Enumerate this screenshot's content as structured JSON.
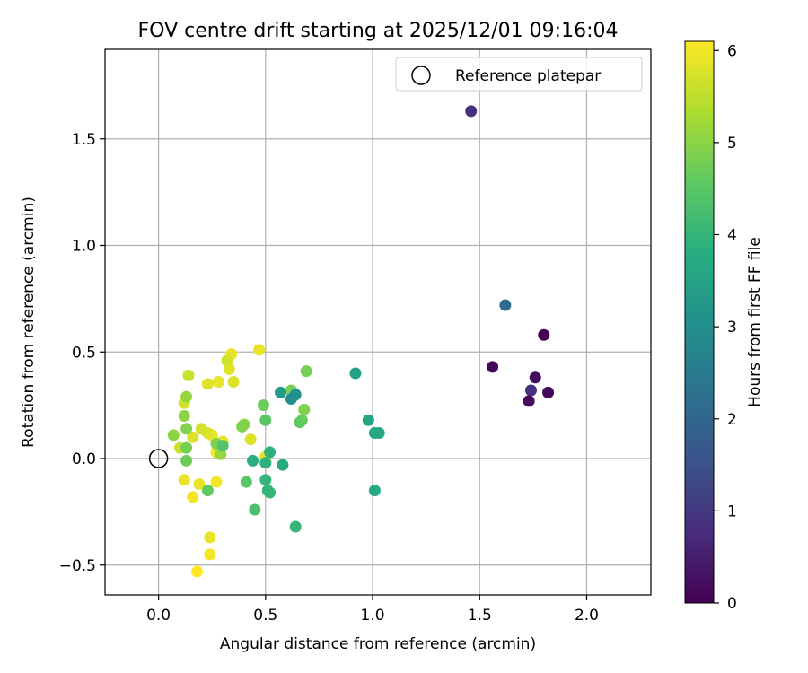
{
  "chart_data": {
    "type": "scatter",
    "title": "FOV centre drift starting at 2025/12/01 09:16:04",
    "xlabel": "Angular distance from reference (arcmin)",
    "ylabel": "Rotation from reference (arcmin)",
    "xlim": [
      -0.25,
      2.3
    ],
    "ylim": [
      -0.64,
      1.92
    ],
    "xticks": [
      0.0,
      0.5,
      1.0,
      1.5,
      2.0
    ],
    "xtick_labels": [
      "0.0",
      "0.5",
      "1.0",
      "1.5",
      "2.0"
    ],
    "yticks": [
      -0.5,
      0.0,
      0.5,
      1.0,
      1.5
    ],
    "ytick_labels": [
      "−0.5",
      "0.0",
      "0.5",
      "1.0",
      "1.5"
    ],
    "grid": true,
    "legend": {
      "location": "top-right",
      "entries": [
        "Reference platepar"
      ]
    },
    "reference_point": {
      "x": 0.0,
      "y": 0.0,
      "label": "Reference platepar"
    },
    "colorbar": {
      "label": "Hours from first FF file",
      "colormap": "viridis",
      "range": [
        0,
        6.1
      ],
      "ticks": [
        0,
        1,
        2,
        3,
        4,
        5,
        6
      ],
      "tick_labels": [
        "0",
        "1",
        "2",
        "3",
        "4",
        "5",
        "6"
      ]
    },
    "points": [
      {
        "x": 1.8,
        "y": 0.58,
        "t": 0.0
      },
      {
        "x": 1.56,
        "y": 0.43,
        "t": 0.1
      },
      {
        "x": 1.76,
        "y": 0.38,
        "t": 0.2
      },
      {
        "x": 1.82,
        "y": 0.31,
        "t": 0.1
      },
      {
        "x": 1.73,
        "y": 0.27,
        "t": 0.15
      },
      {
        "x": 1.74,
        "y": 0.32,
        "t": 0.8
      },
      {
        "x": 1.46,
        "y": 1.63,
        "t": 0.8
      },
      {
        "x": 1.62,
        "y": 0.72,
        "t": 2.1
      },
      {
        "x": 0.62,
        "y": 0.28,
        "t": 3.0
      },
      {
        "x": 0.64,
        "y": 0.3,
        "t": 3.1
      },
      {
        "x": 0.57,
        "y": 0.31,
        "t": 3.3
      },
      {
        "x": 0.92,
        "y": 0.4,
        "t": 3.5
      },
      {
        "x": 0.98,
        "y": 0.18,
        "t": 3.6
      },
      {
        "x": 1.01,
        "y": 0.12,
        "t": 3.6
      },
      {
        "x": 1.03,
        "y": 0.12,
        "t": 3.6
      },
      {
        "x": 1.01,
        "y": -0.15,
        "t": 3.7
      },
      {
        "x": 0.58,
        "y": -0.03,
        "t": 3.7
      },
      {
        "x": 0.44,
        "y": -0.01,
        "t": 3.8
      },
      {
        "x": 0.5,
        "y": -0.02,
        "t": 3.9
      },
      {
        "x": 0.52,
        "y": 0.03,
        "t": 3.9
      },
      {
        "x": 0.5,
        "y": -0.1,
        "t": 4.0
      },
      {
        "x": 0.51,
        "y": -0.15,
        "t": 4.0
      },
      {
        "x": 0.52,
        "y": -0.16,
        "t": 4.1
      },
      {
        "x": 0.64,
        "y": -0.32,
        "t": 4.0
      },
      {
        "x": 0.45,
        "y": -0.24,
        "t": 4.3
      },
      {
        "x": 0.41,
        "y": -0.11,
        "t": 4.5
      },
      {
        "x": 0.3,
        "y": 0.06,
        "t": 4.4
      },
      {
        "x": 0.5,
        "y": 0.18,
        "t": 4.5
      },
      {
        "x": 0.49,
        "y": 0.25,
        "t": 4.7
      },
      {
        "x": 0.62,
        "y": 0.32,
        "t": 4.8
      },
      {
        "x": 0.66,
        "y": 0.17,
        "t": 4.6
      },
      {
        "x": 0.67,
        "y": 0.18,
        "t": 4.7
      },
      {
        "x": 0.68,
        "y": 0.23,
        "t": 4.9
      },
      {
        "x": 0.69,
        "y": 0.41,
        "t": 4.8
      },
      {
        "x": 0.39,
        "y": 0.15,
        "t": 4.9
      },
      {
        "x": 0.4,
        "y": 0.16,
        "t": 5.0
      },
      {
        "x": 0.23,
        "y": -0.15,
        "t": 4.6
      },
      {
        "x": 0.13,
        "y": -0.01,
        "t": 4.7
      },
      {
        "x": 0.13,
        "y": 0.05,
        "t": 4.8
      },
      {
        "x": 0.13,
        "y": 0.14,
        "t": 4.9
      },
      {
        "x": 0.12,
        "y": 0.2,
        "t": 5.0
      },
      {
        "x": 0.13,
        "y": 0.29,
        "t": 5.1
      },
      {
        "x": 0.07,
        "y": 0.11,
        "t": 5.0
      },
      {
        "x": 0.27,
        "y": 0.07,
        "t": 4.9
      },
      {
        "x": 0.29,
        "y": 0.02,
        "t": 5.1
      },
      {
        "x": 0.1,
        "y": 0.05,
        "t": 5.6
      },
      {
        "x": 0.12,
        "y": 0.26,
        "t": 5.7
      },
      {
        "x": 0.14,
        "y": 0.39,
        "t": 5.6
      },
      {
        "x": 0.16,
        "y": 0.1,
        "t": 5.8
      },
      {
        "x": 0.2,
        "y": 0.14,
        "t": 5.7
      },
      {
        "x": 0.23,
        "y": 0.12,
        "t": 5.8
      },
      {
        "x": 0.25,
        "y": 0.11,
        "t": 5.9
      },
      {
        "x": 0.23,
        "y": 0.35,
        "t": 5.8
      },
      {
        "x": 0.28,
        "y": 0.36,
        "t": 5.9
      },
      {
        "x": 0.32,
        "y": 0.46,
        "t": 5.7
      },
      {
        "x": 0.33,
        "y": 0.42,
        "t": 5.8
      },
      {
        "x": 0.34,
        "y": 0.49,
        "t": 5.9
      },
      {
        "x": 0.35,
        "y": 0.36,
        "t": 5.8
      },
      {
        "x": 0.47,
        "y": 0.51,
        "t": 5.9
      },
      {
        "x": 0.43,
        "y": 0.09,
        "t": 5.8
      },
      {
        "x": 0.5,
        "y": 0.01,
        "t": 5.9
      },
      {
        "x": 0.3,
        "y": 0.08,
        "t": 5.9
      },
      {
        "x": 0.27,
        "y": 0.03,
        "t": 6.0
      },
      {
        "x": 0.12,
        "y": -0.1,
        "t": 5.9
      },
      {
        "x": 0.19,
        "y": -0.12,
        "t": 5.9
      },
      {
        "x": 0.27,
        "y": -0.11,
        "t": 6.0
      },
      {
        "x": 0.16,
        "y": -0.18,
        "t": 6.0
      },
      {
        "x": 0.24,
        "y": -0.37,
        "t": 5.9
      },
      {
        "x": 0.24,
        "y": -0.45,
        "t": 6.0
      },
      {
        "x": 0.18,
        "y": -0.53,
        "t": 6.1
      }
    ]
  }
}
